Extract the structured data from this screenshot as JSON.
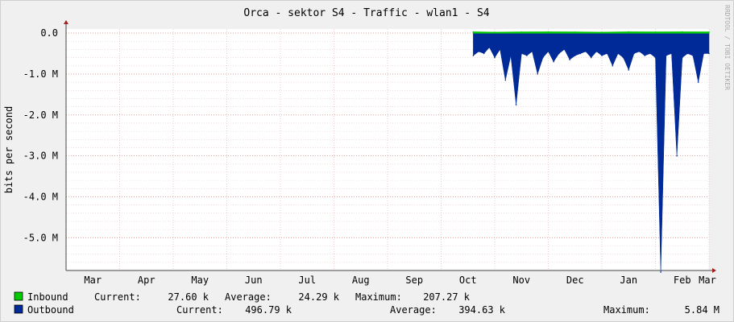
{
  "chart_data": {
    "type": "area",
    "title": "Orca - sektor S4 - Traffic - wlan1 - S4",
    "ylabel": "bits per second",
    "watermark": "RRDTOOL / TOBI OETIKER",
    "ylim": [
      -5.8,
      0.1
    ],
    "y_ticks": [
      {
        "value": 0.0,
        "label": "0.0"
      },
      {
        "value": -1.0,
        "label": "-1.0 M"
      },
      {
        "value": -2.0,
        "label": "-2.0 M"
      },
      {
        "value": -3.0,
        "label": "-3.0 M"
      },
      {
        "value": -4.0,
        "label": "-4.0 M"
      },
      {
        "value": -5.0,
        "label": "-5.0 M"
      }
    ],
    "x_labels": [
      "Mar",
      "Apr",
      "May",
      "Jun",
      "Jul",
      "Aug",
      "Sep",
      "Oct",
      "Nov",
      "Dec",
      "Jan",
      "Feb",
      "Mar"
    ],
    "x_unit": "month index since first Mar (0=Mar, 12=Mar)",
    "data_start_month": 7.6,
    "series": [
      {
        "name": "Inbound",
        "color": "#00cc00",
        "stats_text": {
          "current_label": "Current:",
          "current": "27.60 k",
          "average_label": "Average:",
          "average": "24.29 k",
          "maximum_label": "Maximum:",
          "maximum": "207.27 k"
        },
        "x": [
          7.6,
          8.0,
          8.5,
          9.0,
          9.5,
          10.0,
          10.5,
          11.0,
          11.5,
          12.0
        ],
        "values": [
          0.03,
          0.02,
          0.025,
          0.03,
          0.025,
          0.02,
          0.03,
          0.025,
          0.03,
          0.025
        ]
      },
      {
        "name": "Outbound",
        "color": "#002a97",
        "stats_text": {
          "current_label": "Current:",
          "current": "496.79 k",
          "average_label": "Average:",
          "average": "394.63 k",
          "maximum_label": "Maximum:",
          "maximum": "5.84 M"
        },
        "x": [
          7.6,
          7.7,
          7.8,
          7.9,
          8.0,
          8.1,
          8.2,
          8.3,
          8.4,
          8.5,
          8.6,
          8.7,
          8.8,
          8.9,
          9.0,
          9.1,
          9.2,
          9.3,
          9.4,
          9.5,
          9.6,
          9.7,
          9.8,
          9.9,
          10.0,
          10.1,
          10.2,
          10.3,
          10.4,
          10.5,
          10.6,
          10.7,
          10.8,
          10.9,
          11.0,
          11.1,
          11.2,
          11.3,
          11.4,
          11.5,
          11.6,
          11.7,
          11.8,
          11.9,
          12.0
        ],
        "values": [
          -0.55,
          -0.45,
          -0.5,
          -0.35,
          -0.6,
          -0.4,
          -1.15,
          -0.55,
          -1.75,
          -0.5,
          -0.55,
          -0.45,
          -1.0,
          -0.6,
          -0.45,
          -0.7,
          -0.5,
          -0.4,
          -0.65,
          -0.55,
          -0.5,
          -0.45,
          -0.6,
          -0.45,
          -0.55,
          -0.5,
          -0.8,
          -0.5,
          -0.6,
          -0.9,
          -0.5,
          -0.45,
          -0.55,
          -0.5,
          -0.6,
          -5.84,
          -0.55,
          -0.5,
          -3.0,
          -0.6,
          -0.5,
          -0.55,
          -1.2,
          -0.5,
          -0.5
        ]
      }
    ]
  }
}
